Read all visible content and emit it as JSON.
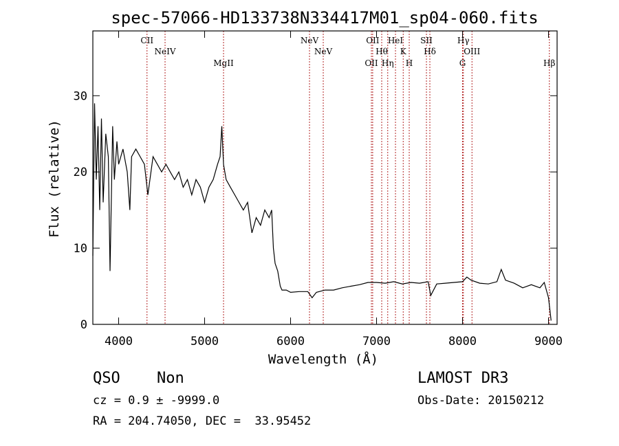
{
  "chart_data": {
    "type": "line",
    "title": "spec-57066-HD133738N334417M01_sp04-060.fits",
    "xlabel": "Wavelength (Å)",
    "ylabel": "Flux (relative)",
    "xlim": [
      3700,
      9100
    ],
    "ylim": [
      0,
      38.5
    ],
    "xticks": [
      4000,
      5000,
      6000,
      7000,
      8000,
      9000
    ],
    "yticks": [
      0,
      10,
      20,
      30
    ],
    "line_color": "#000000",
    "marker_color": "#b22222",
    "series": [
      {
        "x": [
          3700,
          3720,
          3740,
          3760,
          3780,
          3800,
          3820,
          3850,
          3880,
          3900,
          3930,
          3950,
          3980,
          4000,
          4050,
          4100,
          4130,
          4150,
          4200,
          4250,
          4300,
          4340,
          4400,
          4450,
          4500,
          4550,
          4600,
          4650,
          4700,
          4750,
          4800,
          4850,
          4900,
          4950,
          5000,
          5050,
          5100,
          5150,
          5180,
          5200,
          5220,
          5250,
          5300,
          5350,
          5400,
          5450,
          5500,
          5550,
          5600,
          5650,
          5700,
          5750,
          5780,
          5800,
          5820,
          5850,
          5880,
          5900,
          5950,
          6000,
          6100,
          6200,
          6250,
          6300,
          6400,
          6500,
          6600,
          6700,
          6800,
          6900,
          7000,
          7100,
          7200,
          7300,
          7400,
          7500,
          7600,
          7630,
          7700,
          7800,
          7900,
          8000,
          8050,
          8100,
          8200,
          8300,
          8400,
          8450,
          8500,
          8600,
          8700,
          8800,
          8900,
          8950,
          9000,
          9030
        ],
        "y": [
          9,
          29,
          19,
          26,
          15,
          27,
          16,
          25,
          22,
          7,
          26,
          19,
          24,
          21,
          23,
          20,
          15,
          22,
          23,
          22,
          21,
          17,
          22,
          21,
          20,
          21,
          20,
          19,
          20,
          18,
          19,
          17,
          19,
          18,
          16,
          18,
          19,
          21,
          22,
          26,
          21,
          19,
          18,
          17,
          16,
          15,
          16,
          12,
          14,
          13,
          15,
          14,
          15,
          10,
          8,
          7,
          5,
          4.5,
          4.5,
          4.2,
          4.3,
          4.3,
          3.5,
          4.2,
          4.5,
          4.5,
          4.8,
          5,
          5.2,
          5.5,
          5.5,
          5.4,
          5.6,
          5.3,
          5.5,
          5.4,
          5.6,
          3.8,
          5.3,
          5.4,
          5.5,
          5.6,
          6.2,
          5.8,
          5.4,
          5.3,
          5.6,
          7.2,
          5.8,
          5.4,
          4.8,
          5.2,
          4.8,
          5.5,
          3.5,
          0.5
        ]
      }
    ],
    "annotations": [
      {
        "label": "CII",
        "wavelength": 4330
      },
      {
        "label": "NeIV",
        "wavelength": 4540
      },
      {
        "label": "MgII",
        "wavelength": 5220
      },
      {
        "label": "NeV",
        "wavelength": 6220
      },
      {
        "label": "NeV",
        "wavelength": 6380
      },
      {
        "label": "OII",
        "wavelength": 6940
      },
      {
        "label": "OII",
        "wavelength": 6955
      },
      {
        "label": "Hθ",
        "wavelength": 7060
      },
      {
        "label": "Hη",
        "wavelength": 7130
      },
      {
        "label": "HeI",
        "wavelength": 7220
      },
      {
        "label": "K",
        "wavelength": 7310
      },
      {
        "label": "H",
        "wavelength": 7380
      },
      {
        "label": "SII",
        "wavelength": 7580
      },
      {
        "label": "Hδ",
        "wavelength": 7620
      },
      {
        "label": "G",
        "wavelength": 8000
      },
      {
        "label": "Hγ",
        "wavelength": 8010
      },
      {
        "label": "OIII",
        "wavelength": 8110
      },
      {
        "label": "Hβ",
        "wavelength": 9010
      }
    ]
  },
  "footer": {
    "class": "QSO",
    "subclass": "Non",
    "cz": "cz = 0.9 ± -9999.0",
    "radec": "RA = 204.74050, DEC =  33.95452",
    "survey": "LAMOST DR3",
    "obs_date": "Obs-Date: 20150212"
  }
}
